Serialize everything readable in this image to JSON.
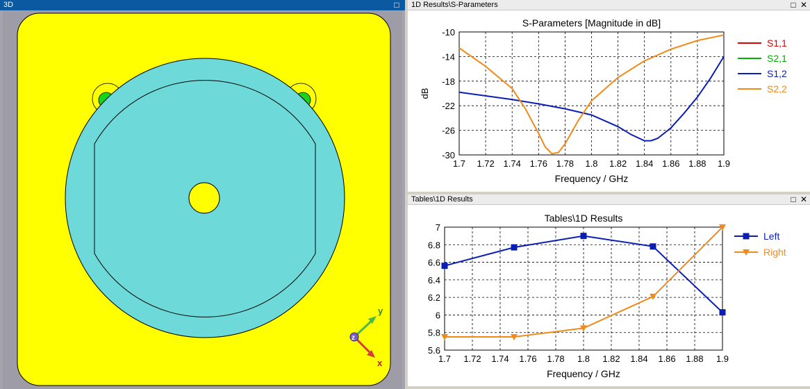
{
  "panes": {
    "view3d": {
      "title": "3D"
    },
    "sparams": {
      "title": "1D Results\\S-Parameters"
    },
    "tables": {
      "title": "Tables\\1D Results"
    }
  },
  "axes_widget": {
    "y": "y",
    "z": "z",
    "x": "x"
  },
  "colors": {
    "yellow": "#ffff00",
    "cyan": "#6dd9d9",
    "s11": "#e00000",
    "s21": "#00b000",
    "s12": "#0a1eb4",
    "s22": "#f28a1a",
    "left": "#0a1eb4",
    "right": "#f28a1a"
  },
  "chart_data": [
    {
      "type": "line",
      "title": "S-Parameters [Magnitude in dB]",
      "xlabel": "Frequency / GHz",
      "ylabel": "dB",
      "xlim": [
        1.7,
        1.9
      ],
      "ylim": [
        -30,
        -10
      ],
      "xticks": [
        "1.7",
        "1.72",
        "1.74",
        "1.76",
        "1.78",
        "1.8",
        "1.82",
        "1.84",
        "1.86",
        "1.88",
        "1.9"
      ],
      "yticks": [
        "-10",
        "-14",
        "-18",
        "-22",
        "-26",
        "-30"
      ],
      "grid": true,
      "legend": "right",
      "series": [
        {
          "name": "S1,1",
          "color": "#e00000",
          "x": [],
          "y": []
        },
        {
          "name": "S2,1",
          "color": "#00b000",
          "x": [],
          "y": []
        },
        {
          "name": "S1,2",
          "color": "#0a1eb4",
          "x": [
            1.7,
            1.72,
            1.74,
            1.76,
            1.78,
            1.8,
            1.82,
            1.83,
            1.84,
            1.845,
            1.85,
            1.86,
            1.87,
            1.88,
            1.89,
            1.9
          ],
          "y": [
            -19.8,
            -20.4,
            -21.0,
            -21.7,
            -22.5,
            -23.5,
            -25.4,
            -26.7,
            -27.7,
            -27.7,
            -27.3,
            -25.6,
            -23.2,
            -20.6,
            -17.5,
            -14.0
          ]
        },
        {
          "name": "S2,2",
          "color": "#f28a1a",
          "x": [
            1.7,
            1.72,
            1.74,
            1.75,
            1.76,
            1.765,
            1.77,
            1.775,
            1.78,
            1.79,
            1.8,
            1.82,
            1.84,
            1.86,
            1.88,
            1.9
          ],
          "y": [
            -12.6,
            -15.6,
            -19.2,
            -22.5,
            -26.5,
            -28.7,
            -29.8,
            -29.6,
            -28.2,
            -24.4,
            -21.2,
            -17.4,
            -14.7,
            -12.8,
            -11.4,
            -10.5
          ]
        }
      ]
    },
    {
      "type": "line",
      "title": "Tables\\1D Results",
      "xlabel": "Frequency / GHz",
      "ylabel": "",
      "xlim": [
        1.7,
        1.9
      ],
      "ylim": [
        5.6,
        7
      ],
      "xticks": [
        "1.7",
        "1.72",
        "1.74",
        "1.76",
        "1.78",
        "1.8",
        "1.82",
        "1.84",
        "1.86",
        "1.88",
        "1.9"
      ],
      "yticks": [
        "7",
        "6.8",
        "6.6",
        "6.4",
        "6.2",
        "6",
        "5.8",
        "5.6"
      ],
      "grid": true,
      "legend": "right",
      "series": [
        {
          "name": "Left",
          "color": "#0a1eb4",
          "marker": "square",
          "x": [
            1.7,
            1.75,
            1.8,
            1.85,
            1.9
          ],
          "y": [
            6.56,
            6.77,
            6.9,
            6.78,
            6.03
          ]
        },
        {
          "name": "Right",
          "color": "#f28a1a",
          "marker": "triangle-down",
          "x": [
            1.7,
            1.75,
            1.8,
            1.85,
            1.9
          ],
          "y": [
            5.75,
            5.75,
            5.85,
            6.21,
            7.0
          ]
        }
      ]
    }
  ]
}
